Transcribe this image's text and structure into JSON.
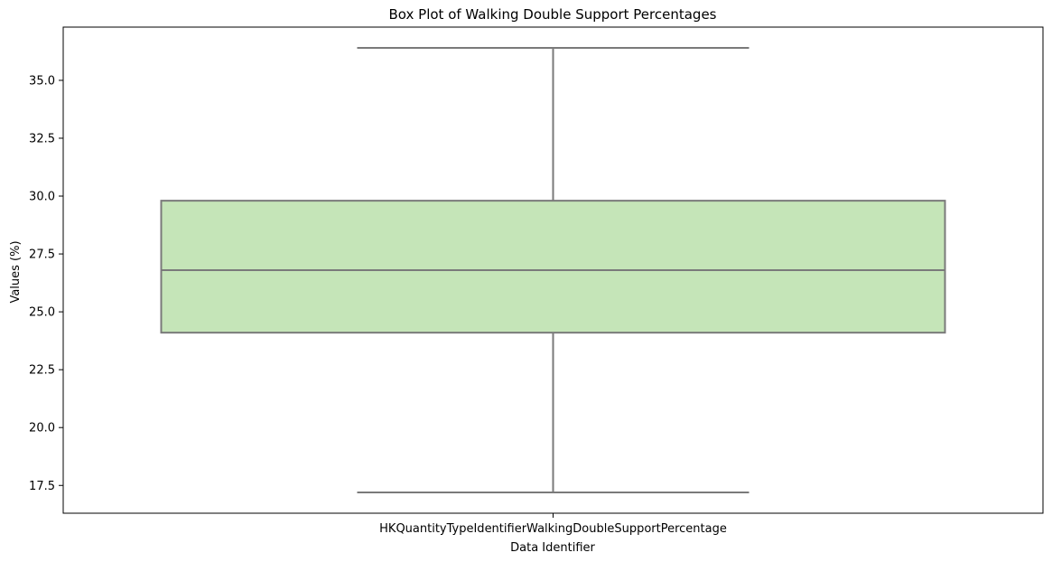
{
  "chart_data": {
    "type": "box",
    "title": "Box Plot of Walking Double Support Percentages",
    "xlabel": "Data Identifier",
    "ylabel": "Values (%)",
    "ylim": [
      16.3,
      37.3
    ],
    "yticks": [
      17.5,
      20.0,
      22.5,
      25.0,
      27.5,
      30.0,
      32.5,
      35.0
    ],
    "ytick_labels": [
      "17.5",
      "20.0",
      "22.5",
      "25.0",
      "27.5",
      "30.0",
      "32.5",
      "35.0"
    ],
    "categories": [
      "HKQuantityTypeIdentifierWalkingDoubleSupportPercentage"
    ],
    "boxes": [
      {
        "category": "HKQuantityTypeIdentifierWalkingDoubleSupportPercentage",
        "whisker_low": 17.2,
        "q1": 24.1,
        "median": 26.8,
        "q3": 29.8,
        "whisker_high": 36.4
      }
    ],
    "grid": false,
    "colors": {
      "box_fill": "#c5e5b8",
      "line": "#7a7a7a"
    }
  }
}
